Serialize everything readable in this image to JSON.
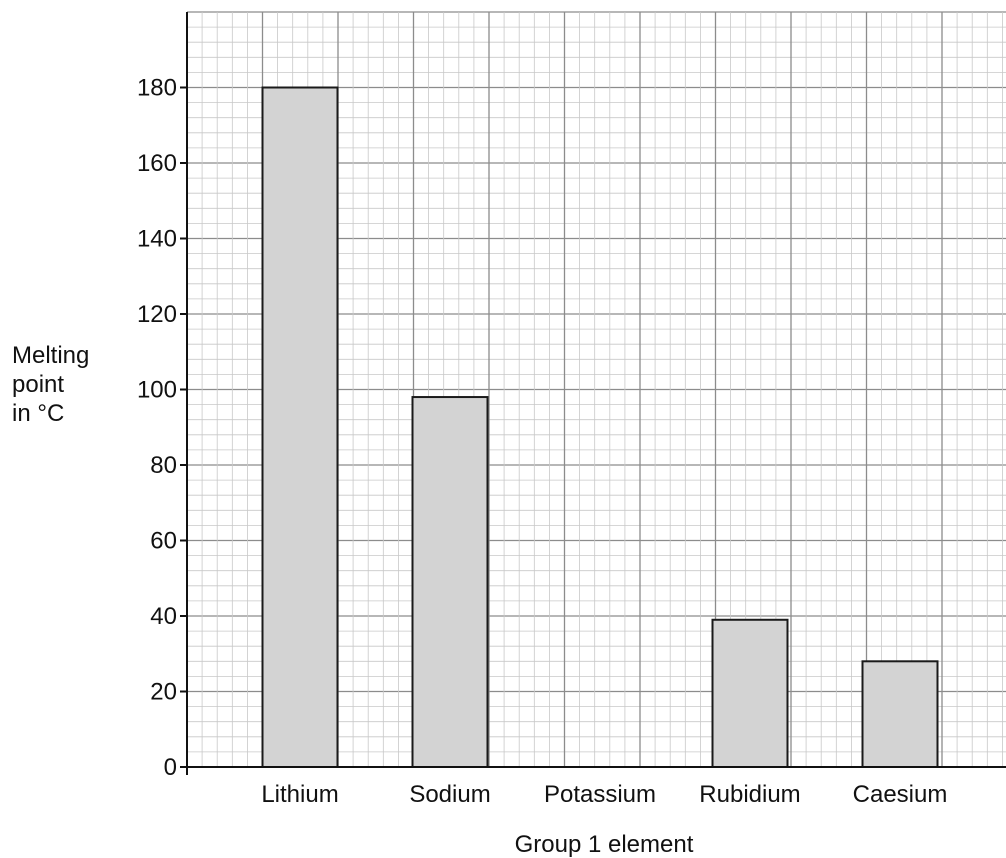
{
  "chart_data": {
    "type": "bar",
    "title": "",
    "xlabel": "Group 1 element",
    "ylabel_lines": [
      "Melting",
      "point",
      "in °C"
    ],
    "categories": [
      "Lithium",
      "Sodium",
      "Potassium",
      "Rubidium",
      "Caesium"
    ],
    "values": [
      180,
      98,
      null,
      39,
      28
    ],
    "ylim": [
      0,
      200
    ],
    "yticks": [
      0,
      20,
      40,
      60,
      80,
      100,
      120,
      140,
      160,
      180
    ],
    "ytick_labels": [
      "0",
      "20",
      "40",
      "60",
      "80",
      "100",
      "120",
      "140",
      "160",
      "180"
    ],
    "grid": true,
    "grid_minor_step": 4,
    "grid_major_step": 20,
    "legend": "none",
    "colors": {
      "bar_fill": "#d3d3d3",
      "bar_stroke": "#1a1a1a",
      "minor_grid": "#c8c8c8",
      "major_grid": "#8c8c8c",
      "axis": "#111111"
    }
  }
}
